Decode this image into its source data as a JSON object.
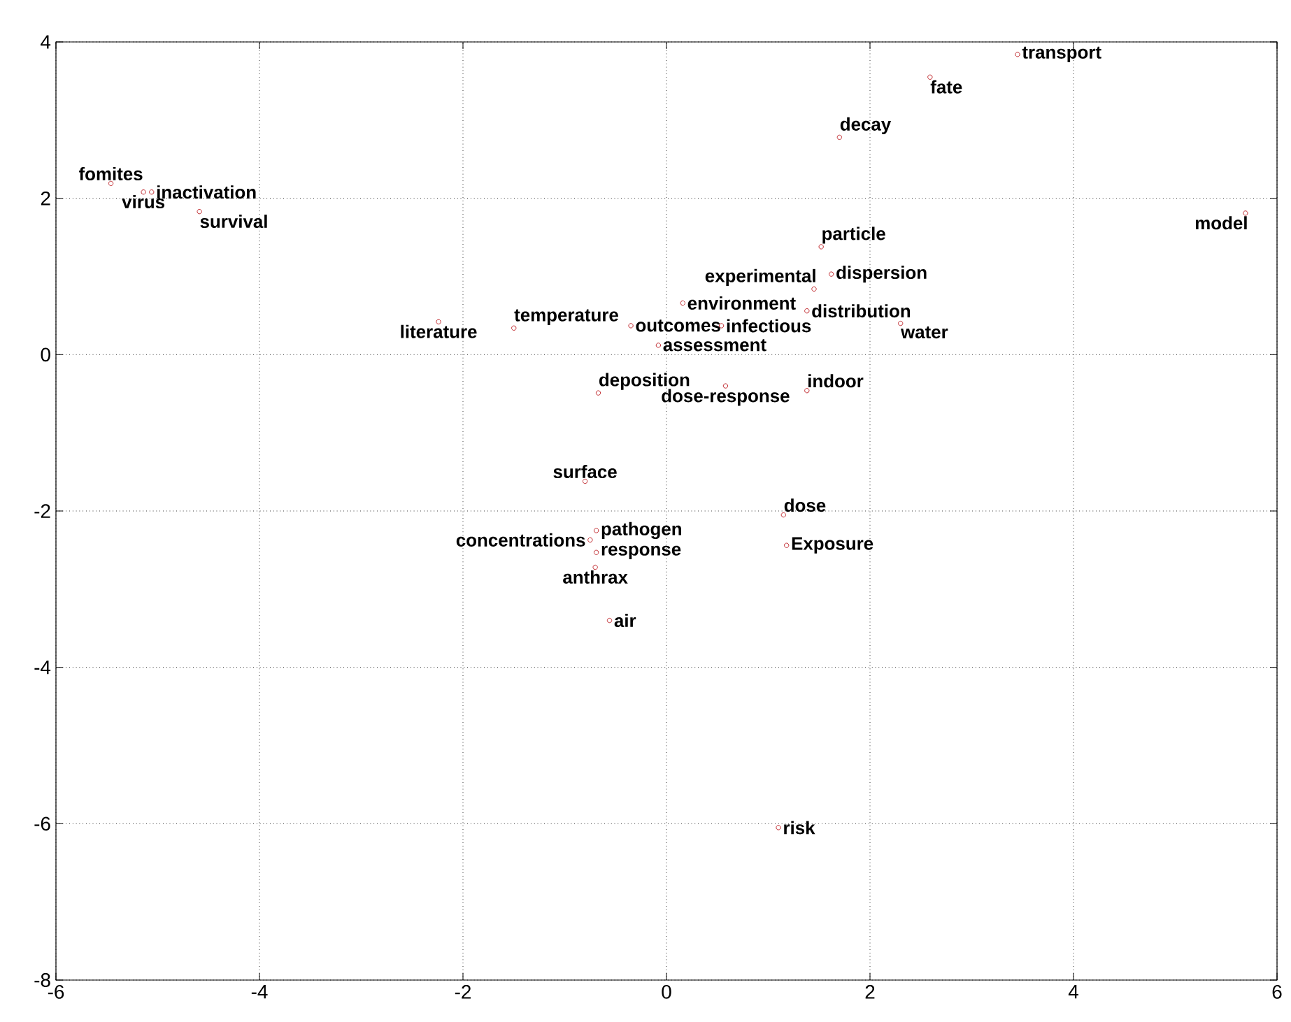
{
  "chart_data": {
    "type": "scatter",
    "marker": "circle",
    "grid": true,
    "xlim": [
      -6,
      6
    ],
    "ylim": [
      -8,
      4
    ],
    "xticks": [
      -6,
      -4,
      -2,
      0,
      2,
      4,
      6
    ],
    "yticks": [
      -8,
      -6,
      -4,
      -2,
      0,
      2,
      4
    ],
    "series": [
      {
        "color": "#c0282d",
        "x": [
          -5.46,
          -5.14,
          -5.06,
          -4.59,
          -2.24,
          -1.5,
          1.7,
          1.52,
          1.45,
          0.16,
          -0.35,
          0.54,
          -0.08,
          1.62,
          1.38,
          2.3,
          1.38,
          -0.67,
          0.58,
          3.45,
          2.59,
          5.69,
          -0.8,
          1.15,
          -0.75,
          -0.69,
          -0.69,
          1.18,
          -0.7,
          -0.56,
          1.1
        ],
        "values": [
          2.19,
          2.08,
          2.08,
          1.83,
          0.42,
          0.34,
          2.78,
          1.38,
          0.84,
          0.66,
          0.37,
          0.37,
          0.12,
          1.03,
          0.56,
          0.4,
          -0.46,
          -0.49,
          -0.4,
          3.84,
          3.55,
          1.81,
          -1.62,
          -2.05,
          -2.37,
          -2.25,
          -2.53,
          -2.44,
          -2.72,
          -3.4,
          -6.05
        ]
      }
    ],
    "annotations": [
      {
        "text": "fomites",
        "x": -5.46,
        "y": 2.19
      },
      {
        "text": "virus",
        "x": -5.14,
        "y": 2.08
      },
      {
        "text": "inactivation",
        "x": -5.06,
        "y": 2.08
      },
      {
        "text": "survival",
        "x": -4.59,
        "y": 1.83
      },
      {
        "text": "literature",
        "x": -2.24,
        "y": 0.42
      },
      {
        "text": "temperature",
        "x": -1.5,
        "y": 0.34
      },
      {
        "text": "decay",
        "x": 1.7,
        "y": 2.78
      },
      {
        "text": "particle",
        "x": 1.52,
        "y": 1.38
      },
      {
        "text": "experimental",
        "x": 1.45,
        "y": 0.84
      },
      {
        "text": "environment",
        "x": 0.16,
        "y": 0.66
      },
      {
        "text": "outcomes",
        "x": -0.35,
        "y": 0.37
      },
      {
        "text": "infectious",
        "x": 0.54,
        "y": 0.37
      },
      {
        "text": "assessment",
        "x": -0.08,
        "y": 0.12
      },
      {
        "text": "dispersion",
        "x": 1.62,
        "y": 1.03
      },
      {
        "text": "distribution",
        "x": 1.38,
        "y": 0.56
      },
      {
        "text": "water",
        "x": 2.3,
        "y": 0.4
      },
      {
        "text": "indoor",
        "x": 1.38,
        "y": -0.46
      },
      {
        "text": "deposition",
        "x": -0.67,
        "y": -0.49
      },
      {
        "text": "dose-response",
        "x": 0.58,
        "y": -0.4
      },
      {
        "text": "transport",
        "x": 3.45,
        "y": 3.84
      },
      {
        "text": "fate",
        "x": 2.59,
        "y": 3.55
      },
      {
        "text": "model",
        "x": 5.69,
        "y": 1.81
      },
      {
        "text": "surface",
        "x": -0.8,
        "y": -1.62
      },
      {
        "text": "dose",
        "x": 1.15,
        "y": -2.05
      },
      {
        "text": "concentrations",
        "x": -0.75,
        "y": -2.37
      },
      {
        "text": "pathogen",
        "x": -0.69,
        "y": -2.25
      },
      {
        "text": "response",
        "x": -0.69,
        "y": -2.53
      },
      {
        "text": "Exposure",
        "x": 1.18,
        "y": -2.44
      },
      {
        "text": "anthrax",
        "x": -0.7,
        "y": -2.72
      },
      {
        "text": "air",
        "x": -0.56,
        "y": -3.4
      },
      {
        "text": "risk",
        "x": 1.1,
        "y": -6.05
      }
    ]
  }
}
